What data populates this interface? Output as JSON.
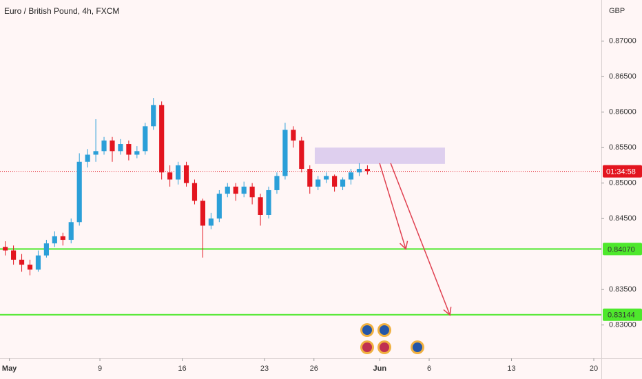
{
  "chart_data": {
    "type": "candlestick",
    "title": "Euro / British Pound, 4h, FXCM",
    "y_axis_label": "GBP",
    "up_color": "#2b9fd8",
    "down_color": "#e3151f",
    "grid": false,
    "xlim": [
      -6.07,
      30.46
    ],
    "ylim": [
      0.8253,
      0.8758
    ],
    "xticks": [
      {
        "value": -5.5,
        "label": "May"
      },
      {
        "value": 0,
        "label": "9"
      },
      {
        "value": 5,
        "label": "16"
      },
      {
        "value": 10,
        "label": "23"
      },
      {
        "value": 13,
        "label": "26"
      },
      {
        "value": 17,
        "label": "Jun"
      },
      {
        "value": 20,
        "label": "6"
      },
      {
        "value": 25,
        "label": "13"
      },
      {
        "value": 30,
        "label": "20"
      }
    ],
    "yticks": [
      {
        "value": 0.87,
        "label": "0.87000"
      },
      {
        "value": 0.865,
        "label": "0.86500"
      },
      {
        "value": 0.86,
        "label": "0.86000"
      },
      {
        "value": 0.855,
        "label": "0.85500"
      },
      {
        "value": 0.85,
        "label": "0.85000"
      },
      {
        "value": 0.845,
        "label": "0.84500"
      },
      {
        "value": 0.835,
        "label": "0.83500"
      },
      {
        "value": 0.83,
        "label": "0.83000"
      }
    ],
    "x": [
      -5.75,
      -5.25,
      -4.75,
      -4.25,
      -3.75,
      -3.25,
      -2.75,
      -2.25,
      -1.75,
      -1.25,
      -0.75,
      -0.25,
      0.25,
      0.75,
      1.25,
      1.75,
      2.25,
      2.75,
      3.25,
      3.75,
      4.25,
      4.75,
      5.25,
      5.75,
      6.25,
      6.75,
      7.25,
      7.75,
      8.25,
      8.75,
      9.25,
      9.75,
      10.25,
      10.75,
      11.25,
      11.75,
      12.25,
      12.75,
      13.25,
      13.75,
      14.25,
      14.75,
      15.25,
      15.75,
      16.25
    ],
    "open": [
      0.841,
      0.8405,
      0.8392,
      0.8385,
      0.8378,
      0.8398,
      0.8415,
      0.8425,
      0.842,
      0.8445,
      0.853,
      0.854,
      0.8545,
      0.856,
      0.8545,
      0.8555,
      0.854,
      0.8545,
      0.858,
      0.861,
      0.8515,
      0.8505,
      0.8525,
      0.85,
      0.8475,
      0.844,
      0.845,
      0.8485,
      0.8495,
      0.8485,
      0.8495,
      0.848,
      0.8455,
      0.849,
      0.851,
      0.8575,
      0.856,
      0.852,
      0.8495,
      0.8505,
      0.851,
      0.8495,
      0.8505,
      0.8515,
      0.852
    ],
    "high": [
      0.8418,
      0.8412,
      0.84,
      0.8392,
      0.8405,
      0.842,
      0.8432,
      0.843,
      0.845,
      0.8542,
      0.8548,
      0.859,
      0.8565,
      0.8565,
      0.8562,
      0.856,
      0.8552,
      0.8585,
      0.862,
      0.8615,
      0.8525,
      0.853,
      0.853,
      0.8505,
      0.8478,
      0.8458,
      0.849,
      0.85,
      0.85,
      0.8502,
      0.85,
      0.8485,
      0.8495,
      0.8515,
      0.8585,
      0.858,
      0.8565,
      0.8525,
      0.851,
      0.8515,
      0.8512,
      0.8508,
      0.852,
      0.8528,
      0.8525
    ],
    "low": [
      0.8398,
      0.8385,
      0.8375,
      0.837,
      0.8375,
      0.8395,
      0.841,
      0.8412,
      0.8415,
      0.844,
      0.8522,
      0.853,
      0.854,
      0.853,
      0.854,
      0.8532,
      0.8535,
      0.854,
      0.8575,
      0.8505,
      0.8495,
      0.8498,
      0.8495,
      0.847,
      0.8395,
      0.8435,
      0.8445,
      0.848,
      0.8475,
      0.848,
      0.847,
      0.844,
      0.845,
      0.8485,
      0.8505,
      0.855,
      0.8515,
      0.8485,
      0.849,
      0.85,
      0.8488,
      0.849,
      0.8498,
      0.851,
      0.8512
    ],
    "close": [
      0.8405,
      0.8392,
      0.8385,
      0.8378,
      0.8398,
      0.8415,
      0.8425,
      0.842,
      0.8445,
      0.853,
      0.854,
      0.8545,
      0.856,
      0.8545,
      0.8555,
      0.854,
      0.8545,
      0.858,
      0.861,
      0.8515,
      0.8505,
      0.8525,
      0.85,
      0.8475,
      0.844,
      0.845,
      0.8485,
      0.8495,
      0.8485,
      0.8495,
      0.848,
      0.8455,
      0.849,
      0.851,
      0.8575,
      0.856,
      0.852,
      0.8495,
      0.8505,
      0.851,
      0.8495,
      0.8505,
      0.8515,
      0.852,
      0.8517
    ],
    "last_price": 0.85165,
    "countdown": "01:34:58",
    "hlines": [
      {
        "value": 0.8407,
        "label": "0.84070",
        "color": "#4ee82c"
      },
      {
        "value": 0.83144,
        "label": "0.83144",
        "color": "#4ee82c"
      }
    ],
    "zone": {
      "x": [
        13.05,
        20.96
      ],
      "y": [
        0.8527,
        0.855
      ],
      "color": "#d8c8ec"
    },
    "arrows": [
      {
        "from": [
          16.99,
          0.8528
        ],
        "to": [
          18.58,
          0.8407
        ]
      },
      {
        "from": [
          17.66,
          0.8528
        ],
        "to": [
          21.26,
          0.8314
        ]
      }
    ],
    "arrow_color": "#e04050"
  }
}
